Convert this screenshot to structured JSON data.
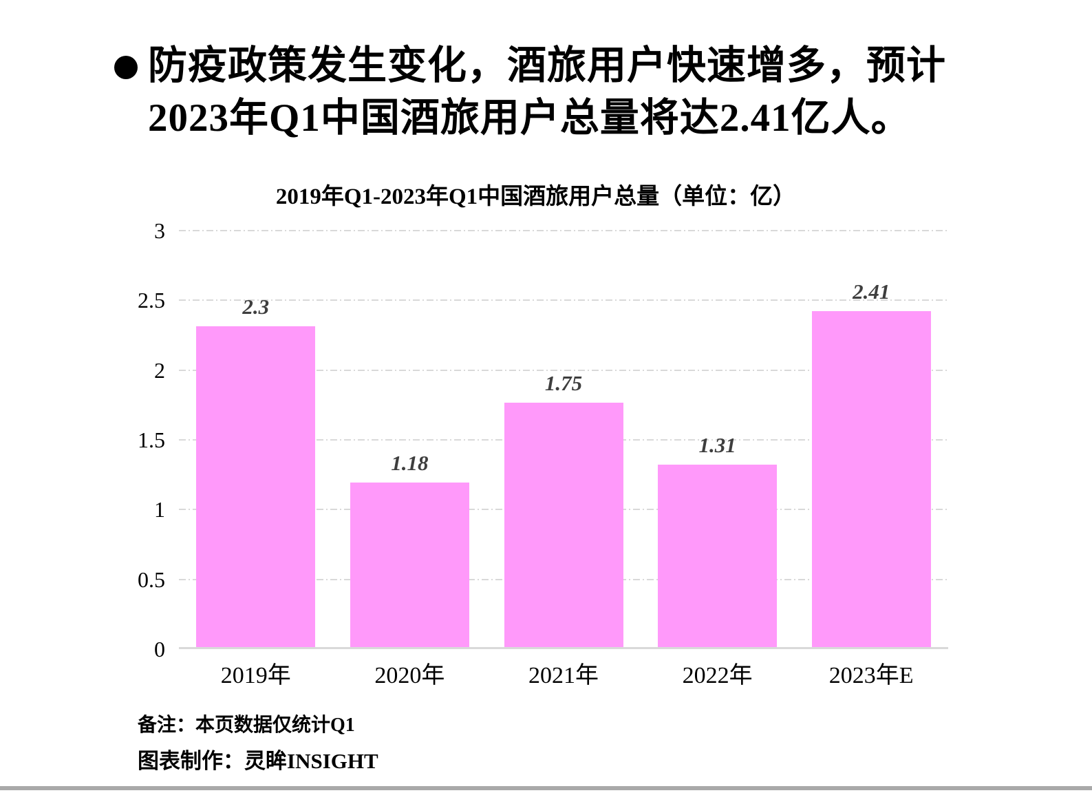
{
  "headline": {
    "line1": "防疫政策发生变化，酒旅用户快速增多，预计",
    "line2": "2023年Q1中国酒旅用户总量将达2.41亿人。"
  },
  "chart_data": {
    "type": "bar",
    "title": "2019年Q1-2023年Q1中国酒旅用户总量（单位：亿）",
    "categories": [
      "2019年",
      "2020年",
      "2021年",
      "2022年",
      "2023年E"
    ],
    "values": [
      2.3,
      1.18,
      1.75,
      1.31,
      2.41
    ],
    "value_labels": [
      "2.3",
      "1.18",
      "1.75",
      "1.31",
      "2.41"
    ],
    "xlabel": "",
    "ylabel": "",
    "ylim": [
      0,
      3
    ],
    "yticks": [
      0,
      0.5,
      1,
      1.5,
      2,
      2.5,
      3
    ],
    "ytick_labels": [
      "0",
      "0.5",
      "1",
      "1.5",
      "2",
      "2.5",
      "3"
    ],
    "grid": "horizontal dash-dot",
    "legend": "none",
    "colors": {
      "bar": "#FF99FA",
      "gridline": "#D9D9D9",
      "value_label": "#3E3E3E",
      "axis_text": "#000000",
      "divider": "#A9A9A9"
    }
  },
  "notes": {
    "remark": "备注：本页数据仅统计Q1",
    "credit": "图表制作：灵眸INSIGHT"
  }
}
